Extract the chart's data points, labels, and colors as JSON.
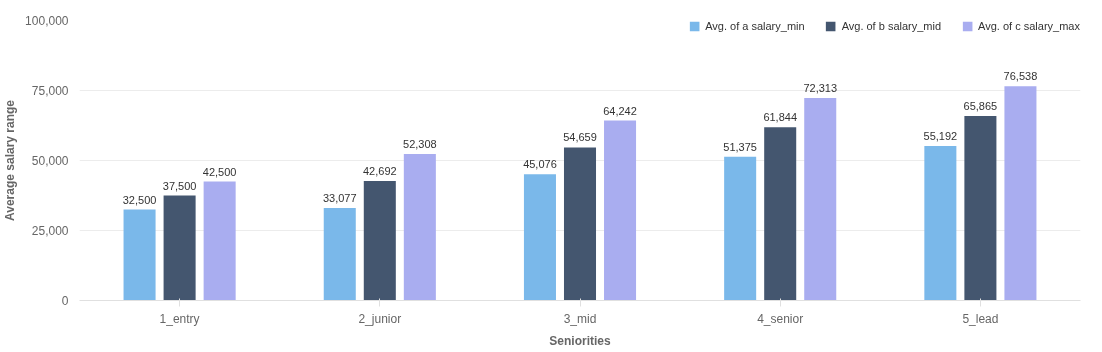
{
  "chart_data": {
    "type": "bar",
    "xlabel": "Seniorities",
    "ylabel": "Average salary range",
    "categories": [
      "1_entry",
      "2_junior",
      "3_mid",
      "4_senior",
      "5_lead"
    ],
    "series": [
      {
        "name": "Avg. of a salary_min",
        "color": "#7ab8ea",
        "values": [
          32500,
          33077,
          45076,
          51375,
          55192
        ],
        "value_labels": [
          "32,500",
          "33,077",
          "45,076",
          "51,375",
          "55,192"
        ]
      },
      {
        "name": "Avg. of b salary_mid",
        "color": "#44566f",
        "values": [
          37500,
          42692,
          54659,
          61844,
          65865
        ],
        "value_labels": [
          "37,500",
          "42,692",
          "54,659",
          "61,844",
          "65,865"
        ]
      },
      {
        "name": "Avg. of c salary_max",
        "color": "#a9adf0",
        "values": [
          42500,
          52308,
          64242,
          72313,
          76538
        ],
        "value_labels": [
          "42,500",
          "52,308",
          "64,242",
          "72,313",
          "76,538"
        ]
      }
    ],
    "ylim": [
      0,
      100000
    ],
    "yticks": [
      {
        "value": 0,
        "label": "0"
      },
      {
        "value": 25000,
        "label": "25,000"
      },
      {
        "value": 50000,
        "label": "50,000"
      },
      {
        "value": 75000,
        "label": "75,000"
      },
      {
        "value": 100000,
        "label": "100,000"
      }
    ],
    "grid": "y",
    "legend": "top right"
  }
}
